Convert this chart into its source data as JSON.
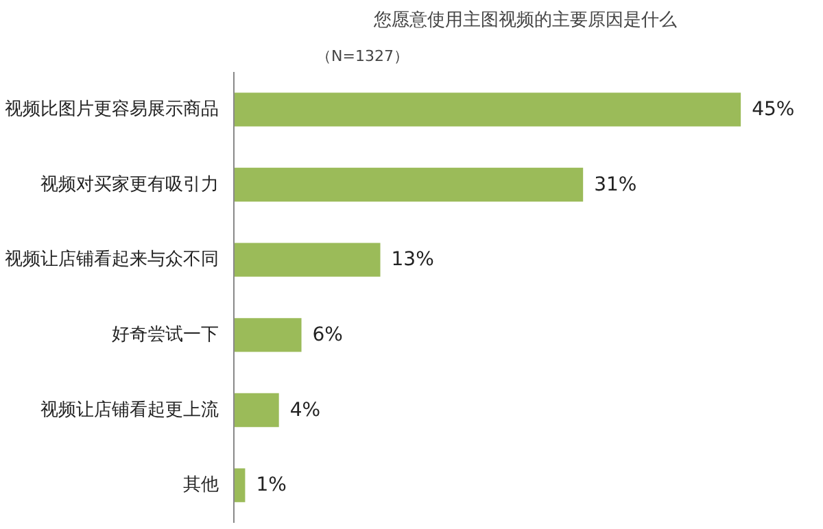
{
  "chart_data": {
    "type": "bar",
    "orientation": "horizontal",
    "title": "您愿意使用主图视频的主要原因是什么",
    "subtitle": "（N=1327）",
    "categories": [
      "视频比图片更容易展示商品",
      "视频对买家更有吸引力",
      "视频让店铺看起来与众不同",
      "好奇尝试一下",
      "视频让店铺看起更上流",
      "其他"
    ],
    "values": [
      45,
      31,
      13,
      6,
      4,
      1
    ],
    "value_labels": [
      "45%",
      "31%",
      "13%",
      "6%",
      "4%",
      "1%"
    ],
    "color": "#9bbb59",
    "grid": false
  }
}
